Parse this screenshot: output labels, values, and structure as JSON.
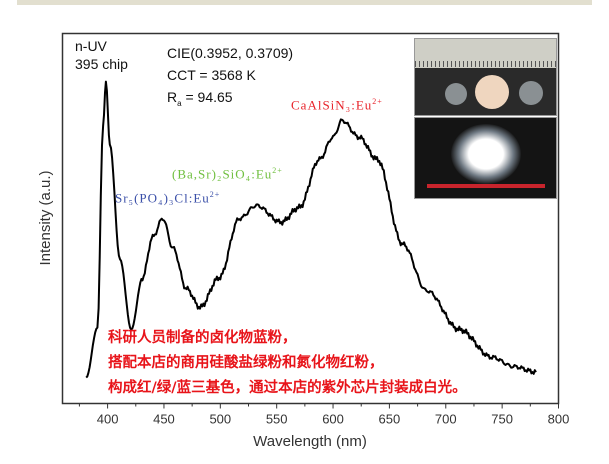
{
  "chart_data": {
    "type": "line",
    "title": "",
    "xlabel": "Wavelength (nm)",
    "ylabel": "Intensity (a.u.)",
    "xlim": [
      360,
      800
    ],
    "ylim": [
      0,
      1
    ],
    "xticks": [
      400,
      450,
      500,
      550,
      600,
      650,
      700,
      750,
      800
    ],
    "yticks": [],
    "grid": false,
    "series": [
      {
        "x": [
          381,
          391,
          396,
          398.5,
          402,
          411,
          421,
          431,
          440,
          449,
          458,
          470,
          482,
          499,
          517,
          532,
          554,
          570,
          588,
          600,
          608,
          623,
          639,
          662,
          683,
          712,
          741,
          760,
          780
        ],
        "y": [
          0.07,
          0.205,
          0.75,
          0.87,
          0.7,
          0.39,
          0.2,
          0.34,
          0.45,
          0.5,
          0.42,
          0.31,
          0.26,
          0.34,
          0.5,
          0.535,
          0.49,
          0.53,
          0.66,
          0.72,
          0.765,
          0.72,
          0.66,
          0.43,
          0.305,
          0.2,
          0.125,
          0.1,
          0.085
        ],
        "color": "#000000"
      }
    ],
    "annotations": {
      "chip_line1": "n-UV",
      "chip_line2": "395 chip",
      "cie": "CIE(0.3952, 0.3709)",
      "cct": "CCT = 3568 K",
      "ra_symbol": "R",
      "ra_sub": "a",
      "ra_value": " = 94.65",
      "blue_phosphor": {
        "base": "Sr₅(PO₄)₃Cl:Eu",
        "sup": "2+",
        "color": "#3a4fa8"
      },
      "green_phosphor": {
        "base": "(Ba,Sr)₂SiO₄:Eu",
        "sup": "2+",
        "color": "#6fbf3e"
      },
      "red_phosphor": {
        "base": "CaAlSiN₃:Eu",
        "sup": "2+",
        "color": "#e8232a"
      }
    }
  },
  "note_lines": [
    "科研人员制备的卤化物蓝粉，",
    "搭配本店的商用硅酸盐绿粉和氮化物红粉，",
    "构成红/绿/蓝三基色，通过本店的紫外芯片封装成白光。"
  ],
  "note_color": "#e8141a"
}
